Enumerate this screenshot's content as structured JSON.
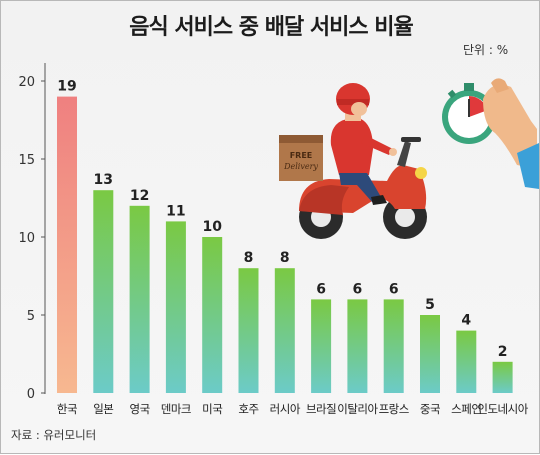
{
  "title": "음식 서비스 중 배달 서비스 비율",
  "unit_label": "단위 : %",
  "source": "자료 : 유러모니터",
  "illustration": {
    "box_text_line1": "FREE",
    "box_text_line2": "Delivery"
  },
  "chart_data": {
    "type": "bar",
    "title": "음식 서비스 중 배달 서비스 비율",
    "xlabel": "",
    "ylabel": "",
    "unit": "%",
    "ylim": [
      0,
      20
    ],
    "yticks": [
      "0",
      "5",
      "10",
      "15",
      "20"
    ],
    "grid": false,
    "categories": [
      "한국",
      "일본",
      "영국",
      "덴마크",
      "미국",
      "호주",
      "러시아",
      "브라질",
      "이탈리아",
      "프랑스",
      "중국",
      "스페인",
      "인도네시아"
    ],
    "values": [
      19,
      13,
      12,
      11,
      10,
      8,
      8,
      6,
      6,
      6,
      5,
      4,
      2
    ],
    "colors": {
      "first_bar_top": "#ef8080",
      "first_bar_bottom": "#f7b890",
      "green_top": "#7ac943",
      "teal_bottom": "#6ccbc8",
      "axis": "#555555"
    }
  }
}
